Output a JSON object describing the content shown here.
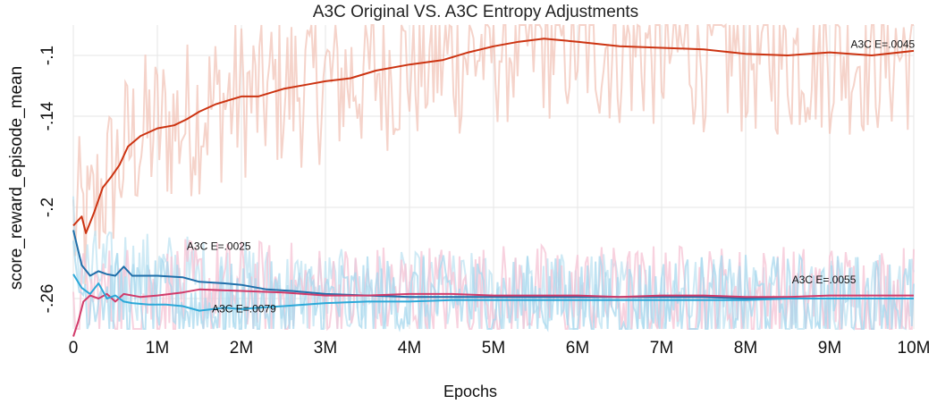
{
  "chart_data": {
    "type": "line",
    "title": "A3C Original VS. A3C Entropy Adjustments",
    "xlabel": "Epochs",
    "ylabel": "score_reward_episode_mean",
    "xlim": [
      0,
      10000000
    ],
    "ylim": [
      -0.28,
      -0.08
    ],
    "x_ticks": [
      0,
      1000000,
      2000000,
      3000000,
      4000000,
      5000000,
      6000000,
      7000000,
      8000000,
      9000000,
      10000000
    ],
    "x_tick_labels": [
      "0",
      "1M",
      "2M",
      "3M",
      "4M",
      "5M",
      "6M",
      "7M",
      "8M",
      "9M",
      "10M"
    ],
    "y_ticks": [
      -0.1,
      -0.14,
      -0.2,
      -0.26
    ],
    "y_tick_labels": [
      "-.1",
      "-.14",
      "-.2",
      "-.26"
    ],
    "grid": true,
    "series": [
      {
        "name": "A3C E=.0045",
        "color": "#cc3311",
        "raw_color": "#f1c4b8",
        "x": [
          0,
          100000,
          150000,
          250000,
          350000,
          450000,
          550000,
          650000,
          800000,
          1000000,
          1200000,
          1350000,
          1500000,
          1700000,
          2000000,
          2200000,
          2500000,
          2800000,
          3000000,
          3300000,
          3600000,
          4000000,
          4400000,
          4700000,
          5000000,
          5300000,
          5600000,
          6000000,
          6500000,
          7000000,
          7500000,
          8000000,
          8500000,
          9000000,
          9500000,
          10000000
        ],
        "y": [
          -0.212,
          -0.206,
          -0.217,
          -0.203,
          -0.187,
          -0.18,
          -0.172,
          -0.16,
          -0.153,
          -0.148,
          -0.146,
          -0.142,
          -0.137,
          -0.132,
          -0.127,
          -0.127,
          -0.122,
          -0.119,
          -0.117,
          -0.115,
          -0.11,
          -0.106,
          -0.103,
          -0.098,
          -0.094,
          -0.091,
          -0.089,
          -0.091,
          -0.094,
          -0.095,
          -0.096,
          -0.099,
          -0.1,
          -0.098,
          -0.1,
          -0.097
        ]
      },
      {
        "name": "A3C E=.0025",
        "color": "#1f6faa",
        "raw_color": "#bfe3f2",
        "x": [
          0,
          100000,
          200000,
          300000,
          400000,
          500000,
          600000,
          700000,
          1000000,
          1300000,
          1500000,
          1800000,
          2000000,
          2300000,
          2600000,
          3000000,
          3500000,
          4000000,
          4500000,
          5000000,
          5500000,
          6000000,
          6500000,
          7000000,
          7500000,
          8000000,
          8500000,
          9000000,
          9500000,
          10000000
        ],
        "y": [
          -0.215,
          -0.238,
          -0.245,
          -0.242,
          -0.244,
          -0.245,
          -0.239,
          -0.245,
          -0.245,
          -0.246,
          -0.249,
          -0.25,
          -0.251,
          -0.254,
          -0.255,
          -0.257,
          -0.258,
          -0.259,
          -0.259,
          -0.259,
          -0.259,
          -0.259,
          -0.259,
          -0.259,
          -0.259,
          -0.26,
          -0.26,
          -0.26,
          -0.26,
          -0.26
        ]
      },
      {
        "name": "A3C E=.0055",
        "color": "#d13b6a",
        "raw_color": "#f6c3d4",
        "x": [
          0,
          60000,
          120000,
          200000,
          300000,
          400000,
          500000,
          600000,
          800000,
          1000000,
          1300000,
          1500000,
          2000000,
          2500000,
          3000000,
          3500000,
          4000000,
          4500000,
          5000000,
          5500000,
          6000000,
          6500000,
          7000000,
          7500000,
          8000000,
          8500000,
          9000000,
          9500000,
          10000000
        ],
        "y": [
          -0.285,
          -0.275,
          -0.262,
          -0.258,
          -0.26,
          -0.257,
          -0.262,
          -0.257,
          -0.259,
          -0.258,
          -0.256,
          -0.254,
          -0.255,
          -0.256,
          -0.258,
          -0.258,
          -0.257,
          -0.257,
          -0.258,
          -0.258,
          -0.258,
          -0.259,
          -0.258,
          -0.258,
          -0.259,
          -0.259,
          -0.258,
          -0.258,
          -0.258
        ]
      },
      {
        "name": "A3C E=.0079",
        "color": "#2ca8d8",
        "raw_color": "#a8d8ee",
        "x": [
          0,
          100000,
          200000,
          300000,
          400000,
          500000,
          600000,
          700000,
          900000,
          1100000,
          1300000,
          1500000,
          1800000,
          2000000,
          2200000,
          2500000,
          3000000,
          3500000,
          4000000,
          4500000,
          5000000,
          5500000,
          6000000,
          6500000,
          7000000,
          7500000,
          8000000,
          8500000,
          9000000,
          9500000,
          10000000
        ],
        "y": [
          -0.244,
          -0.253,
          -0.257,
          -0.25,
          -0.26,
          -0.258,
          -0.262,
          -0.263,
          -0.264,
          -0.264,
          -0.265,
          -0.268,
          -0.266,
          -0.267,
          -0.266,
          -0.265,
          -0.263,
          -0.262,
          -0.262,
          -0.261,
          -0.261,
          -0.261,
          -0.261,
          -0.261,
          -0.261,
          -0.261,
          -0.261,
          -0.26,
          -0.26,
          -0.26,
          -0.26
        ]
      }
    ],
    "annotations": [
      {
        "text": "A3C E=.0045",
        "x": 9250000,
        "y": -0.095
      },
      {
        "text": "A3C E=.0025",
        "x": 1350000,
        "y": -0.228
      },
      {
        "text": "A3C E=.0055",
        "x": 8550000,
        "y": -0.25
      },
      {
        "text": "A3C E=.0079",
        "x": 1650000,
        "y": -0.269
      }
    ]
  }
}
